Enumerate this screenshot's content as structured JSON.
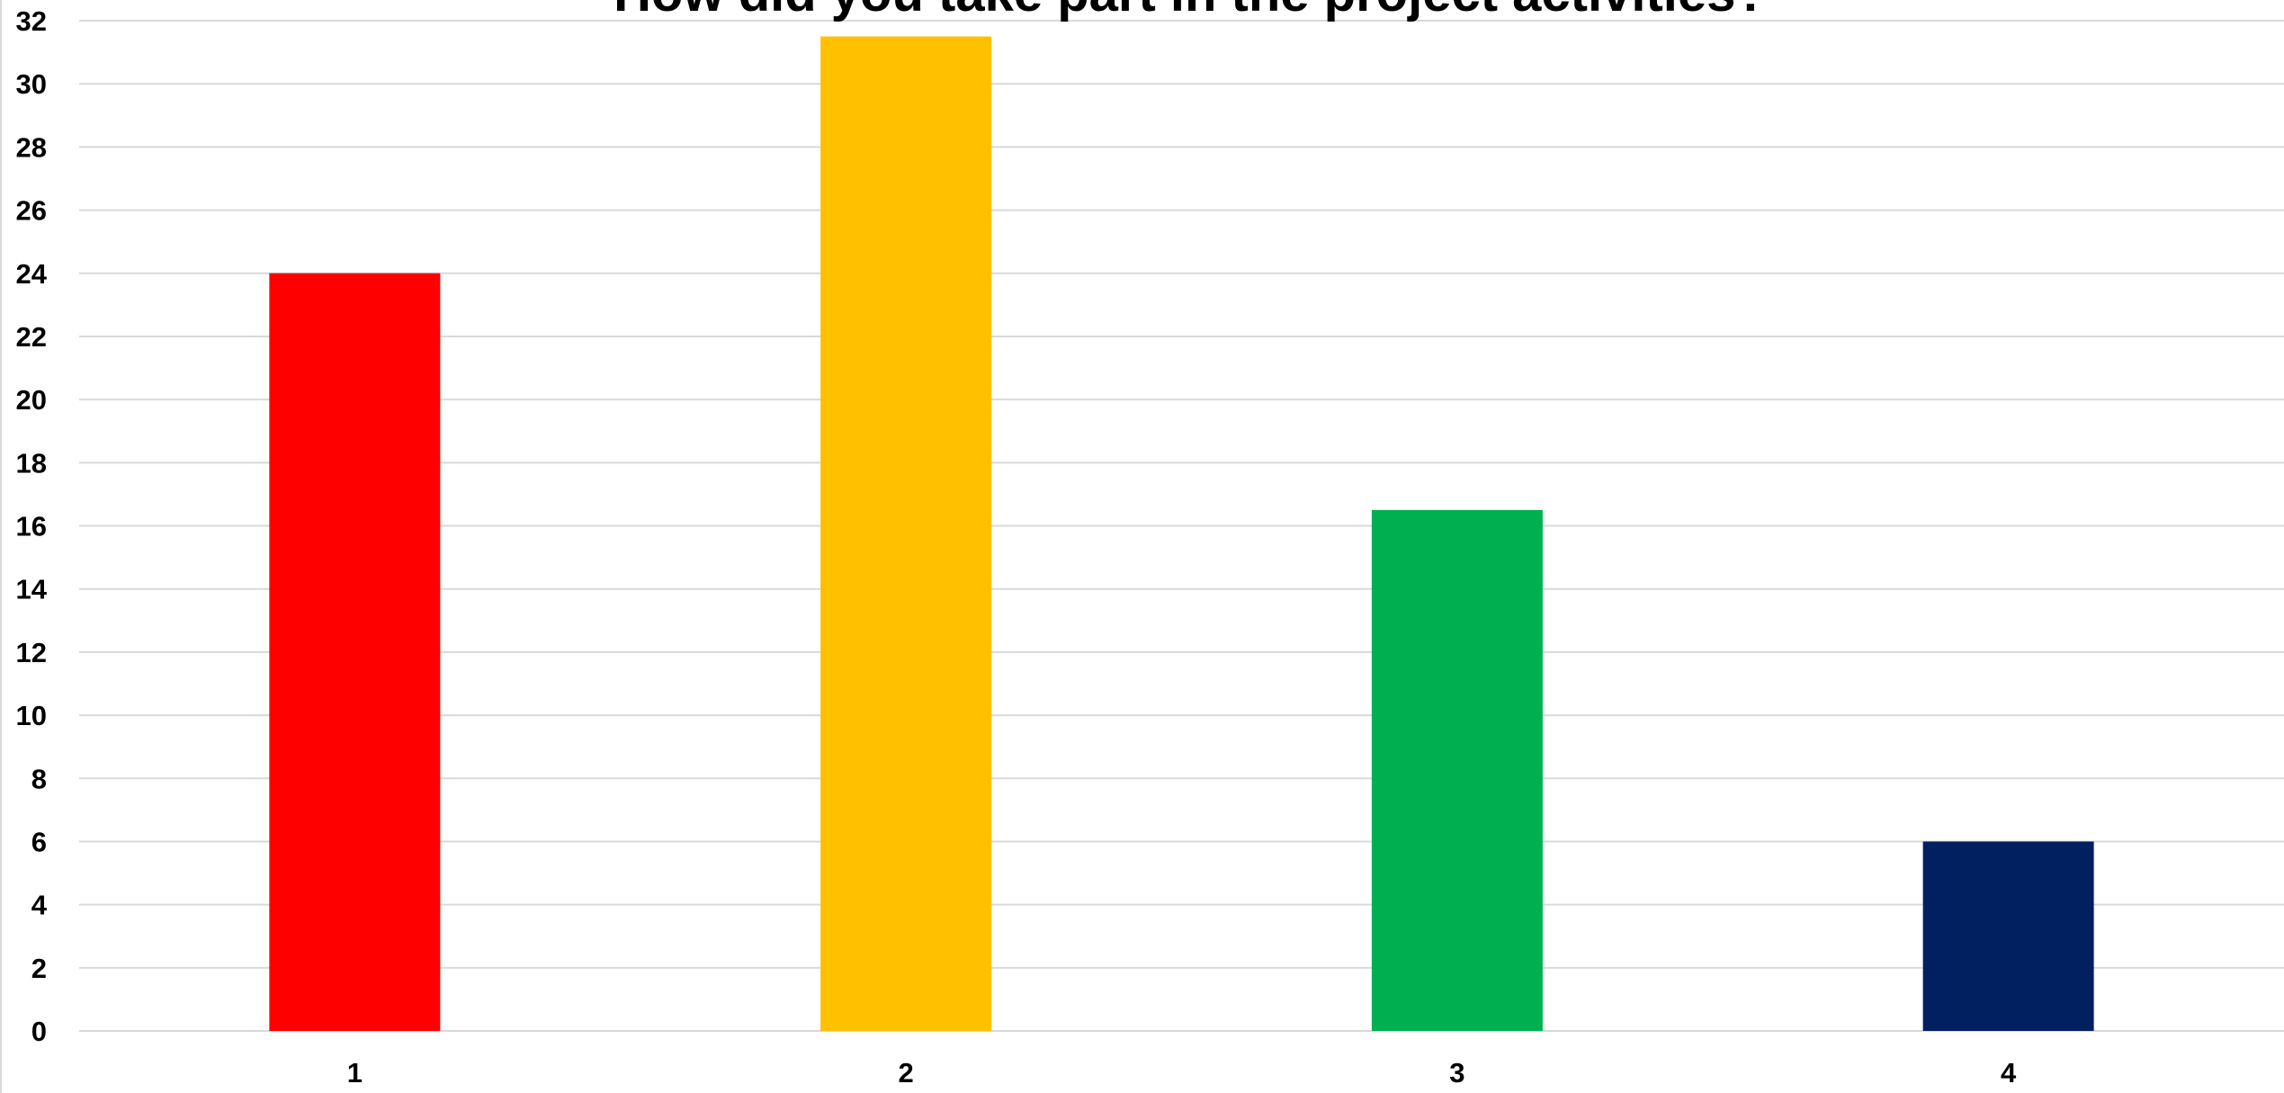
{
  "chart_data": {
    "type": "bar",
    "title": "How did you take part in the project activities?",
    "xlabel": "",
    "ylabel": "",
    "categories": [
      "1",
      "2",
      "3",
      "4"
    ],
    "values": [
      24,
      31.5,
      16.5,
      6
    ],
    "ylim": [
      0,
      32
    ],
    "y_ticks": [
      0,
      2,
      4,
      6,
      8,
      10,
      12,
      14,
      16,
      18,
      20,
      22,
      24,
      26,
      28,
      30,
      32
    ],
    "bar_colors": [
      "#ff0000",
      "#ffc000",
      "#00b050",
      "#002060"
    ],
    "grid": true,
    "legend": "none"
  }
}
